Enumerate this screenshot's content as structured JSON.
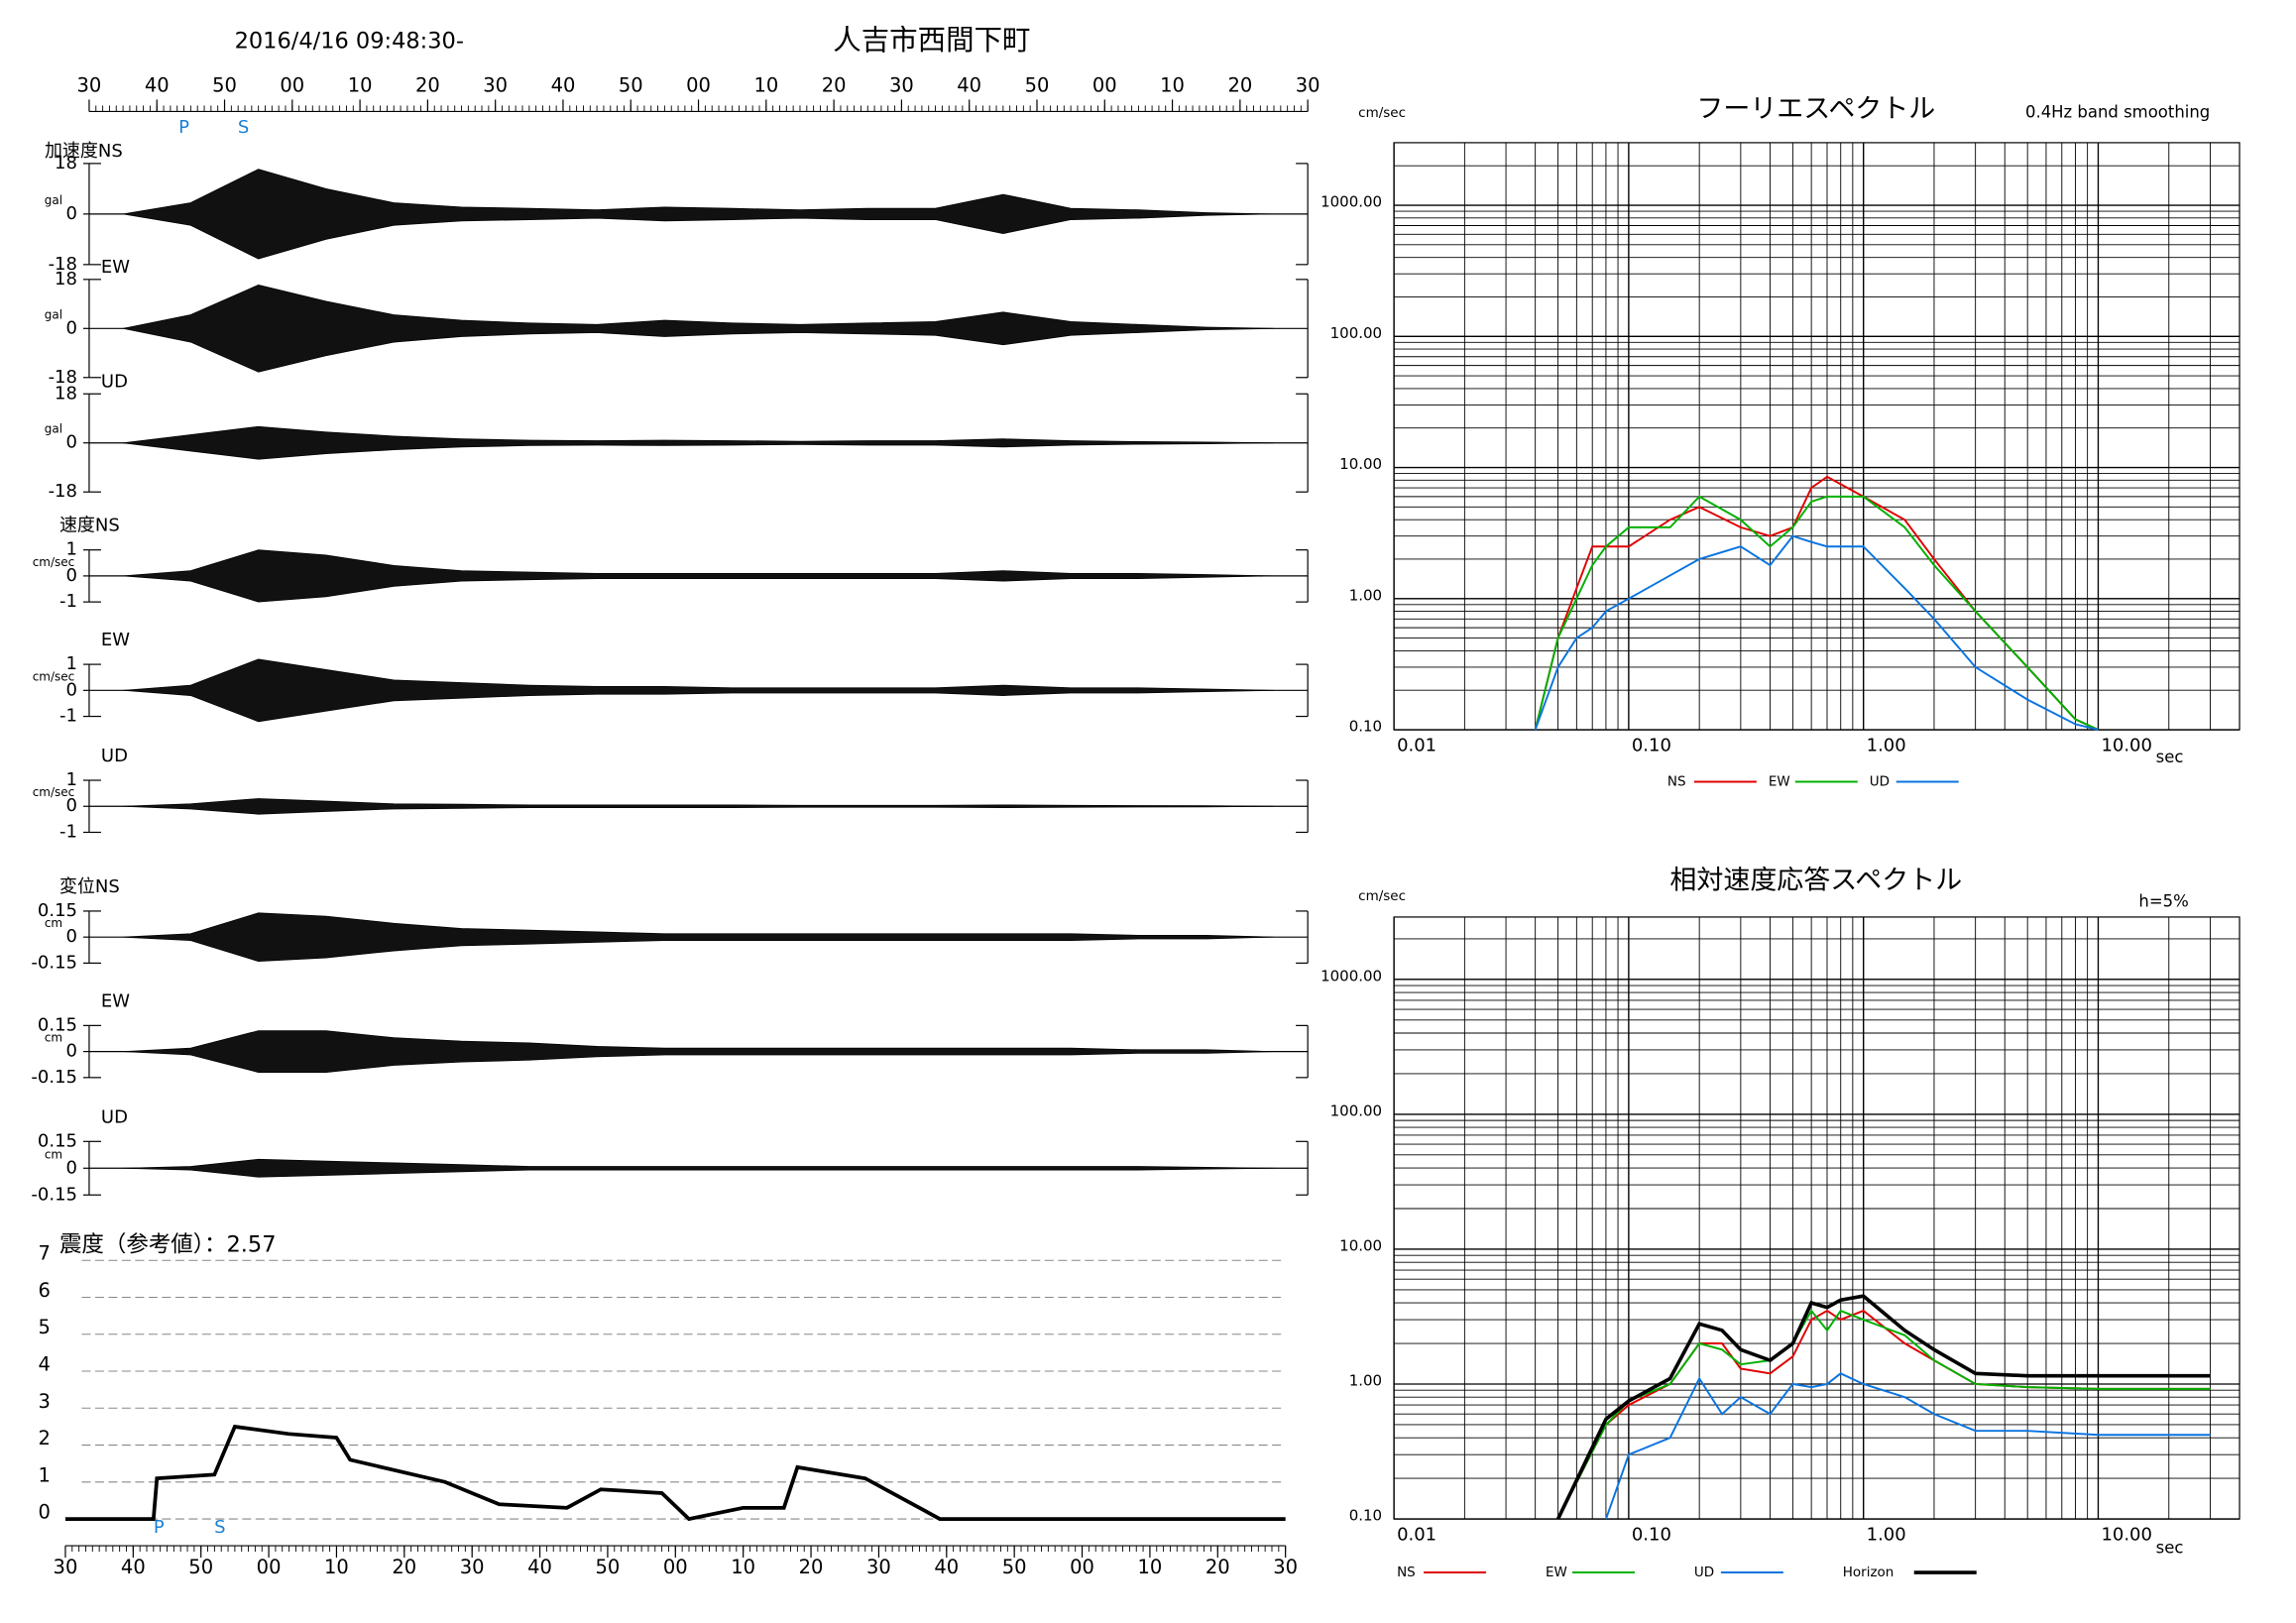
{
  "chart_data": [
    {
      "type": "waveform",
      "title": "人吉市西間下町",
      "subtitle": "2016/4/16 09:48:30-",
      "xlim": [
        0,
        180
      ],
      "xticks": [
        {
          "value": 0,
          "label": "30"
        },
        {
          "value": 10,
          "label": "40"
        },
        {
          "value": 20,
          "label": "50"
        },
        {
          "value": 30,
          "label": "00"
        },
        {
          "value": 40,
          "label": "10"
        },
        {
          "value": 50,
          "label": "20"
        },
        {
          "value": 60,
          "label": "30"
        },
        {
          "value": 70,
          "label": "40"
        },
        {
          "value": 80,
          "label": "50"
        },
        {
          "value": 90,
          "label": "00"
        },
        {
          "value": 100,
          "label": "10"
        },
        {
          "value": 110,
          "label": "20"
        },
        {
          "value": 120,
          "label": "30"
        },
        {
          "value": 130,
          "label": "40"
        },
        {
          "value": 140,
          "label": "50"
        },
        {
          "value": 150,
          "label": "00"
        },
        {
          "value": 160,
          "label": "10"
        },
        {
          "value": 170,
          "label": "20"
        },
        {
          "value": 180,
          "label": "30"
        }
      ],
      "markers": [
        {
          "label": "P",
          "x": 14
        },
        {
          "label": "S",
          "x": 22.8
        }
      ],
      "x": [
        5,
        15,
        25,
        35,
        45,
        55,
        65,
        75,
        85,
        95,
        105,
        115,
        125,
        135,
        145,
        155,
        165,
        175
      ],
      "panels": [
        {
          "label": "加速度NS",
          "unit": "gal",
          "ylim": [
            -18,
            18
          ],
          "yticks": [
            -18,
            0,
            18
          ],
          "values": [
            0,
            4,
            16,
            9,
            4,
            2.5,
            2,
            1.5,
            2.5,
            2,
            1.5,
            2,
            2,
            7,
            2,
            1.5,
            0.5,
            0
          ]
        },
        {
          "label": "EW",
          "unit": "gal",
          "ylim": [
            -18,
            18
          ],
          "yticks": [
            -18,
            0,
            18
          ],
          "values": [
            0,
            5,
            16,
            10,
            5,
            3,
            2,
            1.5,
            3,
            2,
            1.5,
            2,
            2.5,
            6,
            2.5,
            1.5,
            0.5,
            0
          ]
        },
        {
          "label": "UD",
          "unit": "gal",
          "ylim": [
            -18,
            18
          ],
          "yticks": [
            -18,
            0,
            18
          ],
          "values": [
            0,
            3,
            6,
            4,
            2.5,
            1.5,
            1,
            0.8,
            1,
            0.8,
            0.6,
            0.8,
            0.8,
            1.5,
            0.8,
            0.5,
            0.3,
            0
          ]
        },
        {
          "label": "速度NS",
          "unit": "cm/sec",
          "ylim": [
            -1,
            1
          ],
          "yticks": [
            -1,
            0,
            1
          ],
          "values": [
            0,
            0.2,
            1,
            0.8,
            0.4,
            0.2,
            0.15,
            0.1,
            0.1,
            0.1,
            0.1,
            0.1,
            0.1,
            0.2,
            0.1,
            0.1,
            0.05,
            0
          ]
        },
        {
          "label": "EW",
          "unit": "cm/sec",
          "ylim": [
            -1,
            1
          ],
          "yticks": [
            -1,
            0,
            1
          ],
          "values": [
            0,
            0.2,
            1.2,
            0.8,
            0.4,
            0.3,
            0.2,
            0.15,
            0.15,
            0.1,
            0.1,
            0.1,
            0.1,
            0.2,
            0.1,
            0.1,
            0.05,
            0
          ]
        },
        {
          "label": "UD",
          "unit": "cm/sec",
          "ylim": [
            -1,
            1
          ],
          "yticks": [
            -1,
            0,
            1
          ],
          "values": [
            0,
            0.1,
            0.3,
            0.2,
            0.1,
            0.08,
            0.05,
            0.05,
            0.05,
            0.05,
            0.04,
            0.04,
            0.04,
            0.05,
            0.04,
            0.03,
            0.02,
            0
          ]
        },
        {
          "label": "変位NS",
          "unit": "cm",
          "ylim": [
            -0.15,
            0.15
          ],
          "yticks": [
            -0.15,
            0,
            0.15
          ],
          "values": [
            0,
            0.02,
            0.14,
            0.12,
            0.08,
            0.05,
            0.04,
            0.03,
            0.02,
            0.02,
            0.02,
            0.02,
            0.02,
            0.02,
            0.02,
            0.01,
            0.01,
            0
          ]
        },
        {
          "label": "EW",
          "unit": "cm",
          "ylim": [
            -0.15,
            0.15
          ],
          "yticks": [
            -0.15,
            0,
            0.15
          ],
          "values": [
            0,
            0.02,
            0.12,
            0.12,
            0.08,
            0.06,
            0.05,
            0.03,
            0.02,
            0.02,
            0.02,
            0.02,
            0.02,
            0.02,
            0.02,
            0.01,
            0.01,
            0
          ]
        },
        {
          "label": "UD",
          "unit": "cm",
          "ylim": [
            -0.15,
            0.15
          ],
          "yticks": [
            -0.15,
            0,
            0.15
          ],
          "values": [
            0,
            0.01,
            0.05,
            0.04,
            0.03,
            0.02,
            0.01,
            0.01,
            0.01,
            0.01,
            0.01,
            0.01,
            0.01,
            0.01,
            0.01,
            0.01,
            0.005,
            0
          ]
        }
      ]
    },
    {
      "type": "line",
      "title": "震度（参考値）：2.57",
      "color": "#000000",
      "xlim": [
        0,
        180
      ],
      "xticks": [
        {
          "value": 0,
          "label": "30"
        },
        {
          "value": 10,
          "label": "40"
        },
        {
          "value": 20,
          "label": "50"
        },
        {
          "value": 30,
          "label": "00"
        },
        {
          "value": 40,
          "label": "10"
        },
        {
          "value": 50,
          "label": "20"
        },
        {
          "value": 60,
          "label": "30"
        },
        {
          "value": 70,
          "label": "40"
        },
        {
          "value": 80,
          "label": "50"
        },
        {
          "value": 90,
          "label": "00"
        },
        {
          "value": 100,
          "label": "10"
        },
        {
          "value": 110,
          "label": "20"
        },
        {
          "value": 120,
          "label": "30"
        },
        {
          "value": 130,
          "label": "40"
        },
        {
          "value": 140,
          "label": "50"
        },
        {
          "value": 150,
          "label": "00"
        },
        {
          "value": 160,
          "label": "10"
        },
        {
          "value": 170,
          "label": "20"
        },
        {
          "value": 180,
          "label": "30"
        }
      ],
      "ylim": [
        0,
        7
      ],
      "yticks": [
        0,
        1,
        2,
        3,
        4,
        5,
        6,
        7
      ],
      "grid": true,
      "markers": [
        {
          "label": "P",
          "x": 13.8
        },
        {
          "label": "S",
          "x": 22.8
        }
      ],
      "x": [
        0,
        13,
        13.5,
        22,
        25,
        33,
        40,
        42,
        56,
        64,
        74,
        79,
        88,
        92,
        100,
        106,
        108,
        118,
        127,
        129,
        180
      ],
      "values": [
        0,
        0,
        1.1,
        1.2,
        2.5,
        2.3,
        2.2,
        1.6,
        1.0,
        0.4,
        0.3,
        0.8,
        0.7,
        0,
        0.3,
        0.3,
        1.4,
        1.1,
        0.2,
        0,
        0
      ]
    },
    {
      "type": "line",
      "title": "フーリエスペクトル",
      "annotation": "0.4Hz band smoothing",
      "y_label": "cm/sec",
      "x_label": "sec",
      "log_x": true,
      "log_y": true,
      "minor_grid": true,
      "xlim": [
        0.01,
        40
      ],
      "ylim": [
        0.1,
        3000
      ],
      "xticks": [
        {
          "value": 0.01,
          "label": "0.01"
        },
        {
          "value": 0.1,
          "label": "0.10"
        },
        {
          "value": 1,
          "label": "1.00"
        },
        {
          "value": 10,
          "label": "10.00"
        }
      ],
      "yticks": [
        {
          "value": 0.1,
          "label": "0.10"
        },
        {
          "value": 1,
          "label": "1.00"
        },
        {
          "value": 10,
          "label": "10.00"
        },
        {
          "value": 100,
          "label": "100.00"
        },
        {
          "value": 1000,
          "label": "1000.00"
        }
      ],
      "x": [
        0.04,
        0.05,
        0.06,
        0.07,
        0.08,
        0.1,
        0.15,
        0.2,
        0.3,
        0.4,
        0.5,
        0.6,
        0.7,
        1,
        1.5,
        2,
        3,
        5,
        8,
        10
      ],
      "series": [
        {
          "name": "NS",
          "color": "#e00000",
          "values": [
            0.1,
            0.5,
            1.2,
            2.5,
            2.5,
            2.5,
            4,
            5,
            3.5,
            3,
            3.5,
            7,
            8.5,
            6,
            4,
            2,
            0.8,
            0.3,
            0.12,
            0.1
          ]
        },
        {
          "name": "EW",
          "color": "#00b000",
          "values": [
            0.1,
            0.5,
            1,
            1.8,
            2.5,
            3.5,
            3.5,
            6,
            4,
            2.5,
            3.5,
            5.5,
            6,
            6,
            3.5,
            1.8,
            0.8,
            0.3,
            0.12,
            0.1
          ]
        },
        {
          "name": "UD",
          "color": "#0a74e0",
          "values": [
            0.1,
            0.3,
            0.5,
            0.6,
            0.8,
            1,
            1.5,
            2,
            2.5,
            1.8,
            3,
            2.7,
            2.5,
            2.5,
            1.2,
            0.7,
            0.3,
            0.17,
            0.11,
            0.1
          ]
        }
      ]
    },
    {
      "type": "line",
      "title": "相対速度応答スペクトル",
      "annotation": "h=5%",
      "y_label": "cm/sec",
      "x_label": "sec",
      "log_x": true,
      "log_y": true,
      "minor_grid": true,
      "xlim": [
        0.01,
        40
      ],
      "ylim": [
        0.1,
        2900
      ],
      "xticks": [
        {
          "value": 0.01,
          "label": "0.01"
        },
        {
          "value": 0.1,
          "label": "0.10"
        },
        {
          "value": 1,
          "label": "1.00"
        },
        {
          "value": 10,
          "label": "10.00"
        }
      ],
      "yticks": [
        {
          "value": 0.1,
          "label": "0.10"
        },
        {
          "value": 1,
          "label": "1.00"
        },
        {
          "value": 10,
          "label": "10.00"
        },
        {
          "value": 100,
          "label": "100.00"
        },
        {
          "value": 1000,
          "label": "1000.00"
        }
      ],
      "x": [
        0.05,
        0.08,
        0.1,
        0.15,
        0.2,
        0.25,
        0.3,
        0.4,
        0.5,
        0.6,
        0.7,
        0.8,
        1,
        1.5,
        2,
        3,
        5,
        10,
        30
      ],
      "series": [
        {
          "name": "NS",
          "color": "#e00000",
          "values": [
            0.1,
            0.5,
            0.7,
            1,
            2,
            2,
            1.3,
            1.2,
            1.6,
            3,
            3.5,
            3,
            3.5,
            2,
            1.5,
            1,
            0.95,
            0.92,
            0.92
          ]
        },
        {
          "name": "EW",
          "color": "#00b000",
          "values": [
            0.1,
            0.5,
            0.75,
            1,
            2,
            1.8,
            1.4,
            1.5,
            2,
            3.5,
            2.5,
            3.5,
            3,
            2.3,
            1.5,
            1,
            0.95,
            0.92,
            0.92
          ]
        },
        {
          "name": "UD",
          "color": "#0a74e0",
          "values": [
            null,
            0.1,
            0.3,
            0.4,
            1.1,
            0.6,
            0.8,
            0.6,
            1,
            0.95,
            1,
            1.2,
            1,
            0.8,
            0.6,
            0.45,
            0.45,
            0.42,
            0.42
          ]
        },
        {
          "name": "Horizon",
          "color": "#000000",
          "values": [
            0.1,
            0.55,
            0.75,
            1.1,
            2.8,
            2.5,
            1.8,
            1.5,
            2,
            4,
            3.7,
            4.2,
            4.5,
            2.5,
            1.8,
            1.2,
            1.15,
            1.15,
            1.15
          ]
        }
      ]
    }
  ]
}
